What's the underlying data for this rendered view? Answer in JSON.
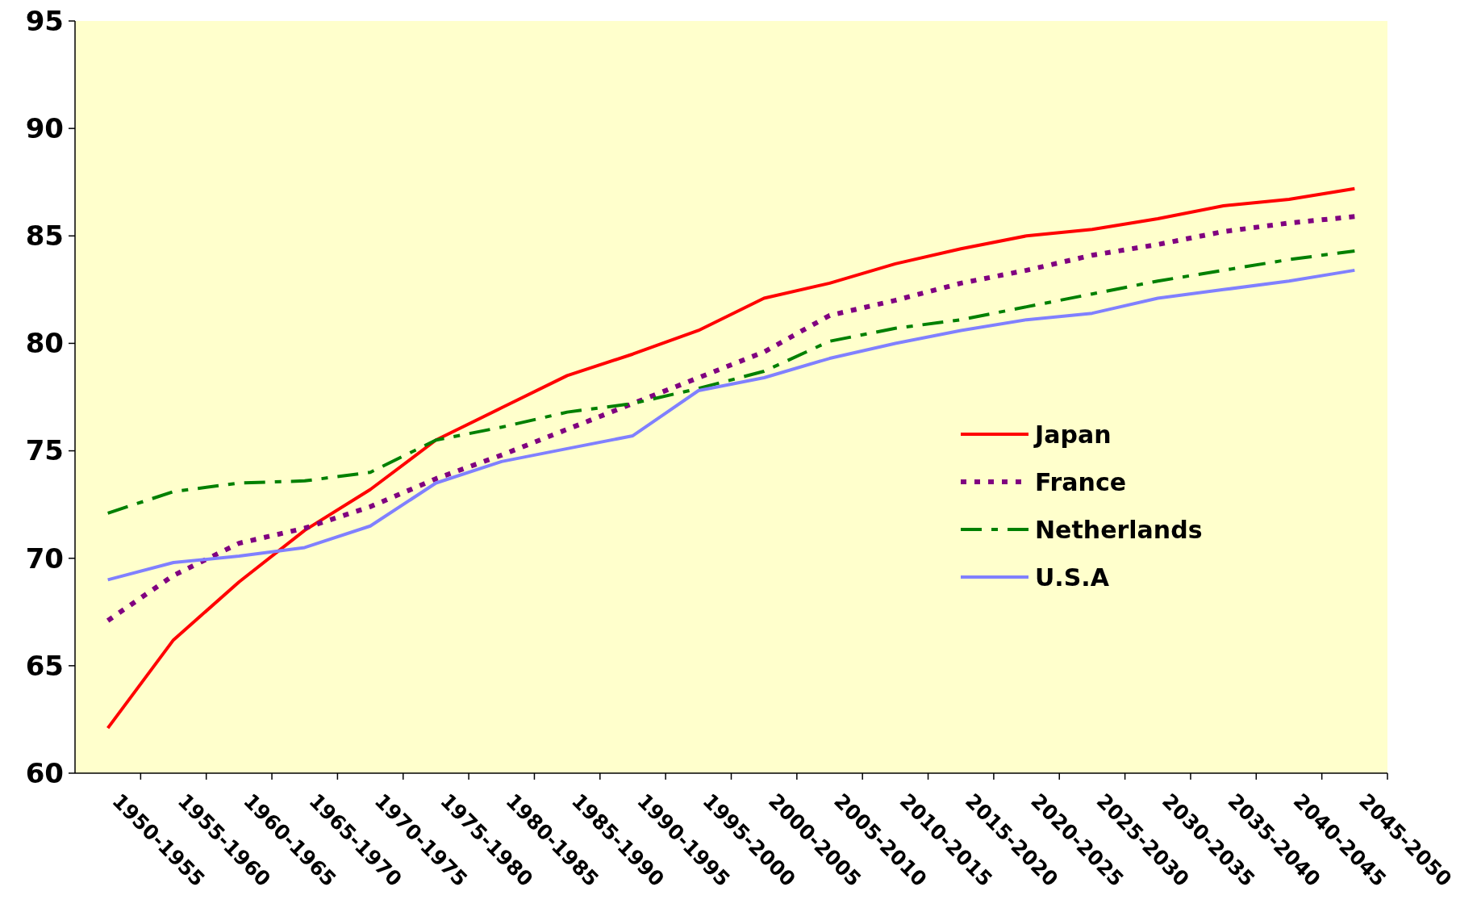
{
  "chart_data": {
    "type": "line",
    "categories": [
      "1950-1955",
      "1955-1960",
      "1960-1965",
      "1965-1970",
      "1970-1975",
      "1975-1980",
      "1980-1985",
      "1985-1990",
      "1990-1995",
      "1995-2000",
      "2000-2005",
      "2005-2010",
      "2010-2015",
      "2015-2020",
      "2020-2025",
      "2025-2030",
      "2030-2035",
      "2035-2040",
      "2040-2045",
      "2045-2050"
    ],
    "series": [
      {
        "name": "Japan",
        "color": "#ff0000",
        "line_style": "solid",
        "values": [
          62.1,
          66.2,
          68.9,
          71.3,
          73.2,
          75.5,
          77.0,
          78.5,
          79.5,
          80.6,
          82.1,
          82.8,
          83.7,
          84.4,
          85.0,
          85.3,
          85.8,
          86.4,
          86.7,
          87.2
        ]
      },
      {
        "name": "France",
        "color": "#800080",
        "line_style": "dotted",
        "values": [
          67.1,
          69.2,
          70.7,
          71.4,
          72.4,
          73.7,
          74.8,
          76.0,
          77.2,
          78.4,
          79.6,
          81.3,
          82.0,
          82.8,
          83.4,
          84.1,
          84.6,
          85.2,
          85.6,
          85.9
        ]
      },
      {
        "name": "Netherlands",
        "color": "#008000",
        "line_style": "dashed",
        "values": [
          72.1,
          73.1,
          73.5,
          73.6,
          74.0,
          75.5,
          76.1,
          76.8,
          77.2,
          77.9,
          78.7,
          80.1,
          80.7,
          81.1,
          81.7,
          82.3,
          82.9,
          83.4,
          83.9,
          84.3
        ]
      },
      {
        "name": "U.S.A",
        "color": "#8080ff",
        "line_style": "solid",
        "values": [
          69.0,
          69.8,
          70.1,
          70.5,
          71.5,
          73.5,
          74.5,
          75.1,
          75.7,
          77.8,
          78.4,
          79.3,
          80.0,
          80.6,
          81.1,
          81.4,
          82.1,
          82.5,
          82.9,
          83.4
        ]
      }
    ],
    "ylim": [
      60,
      95
    ],
    "yticks": [
      60,
      65,
      70,
      75,
      80,
      85,
      90,
      95
    ],
    "grid": false,
    "legend": "right",
    "marker": "none"
  }
}
